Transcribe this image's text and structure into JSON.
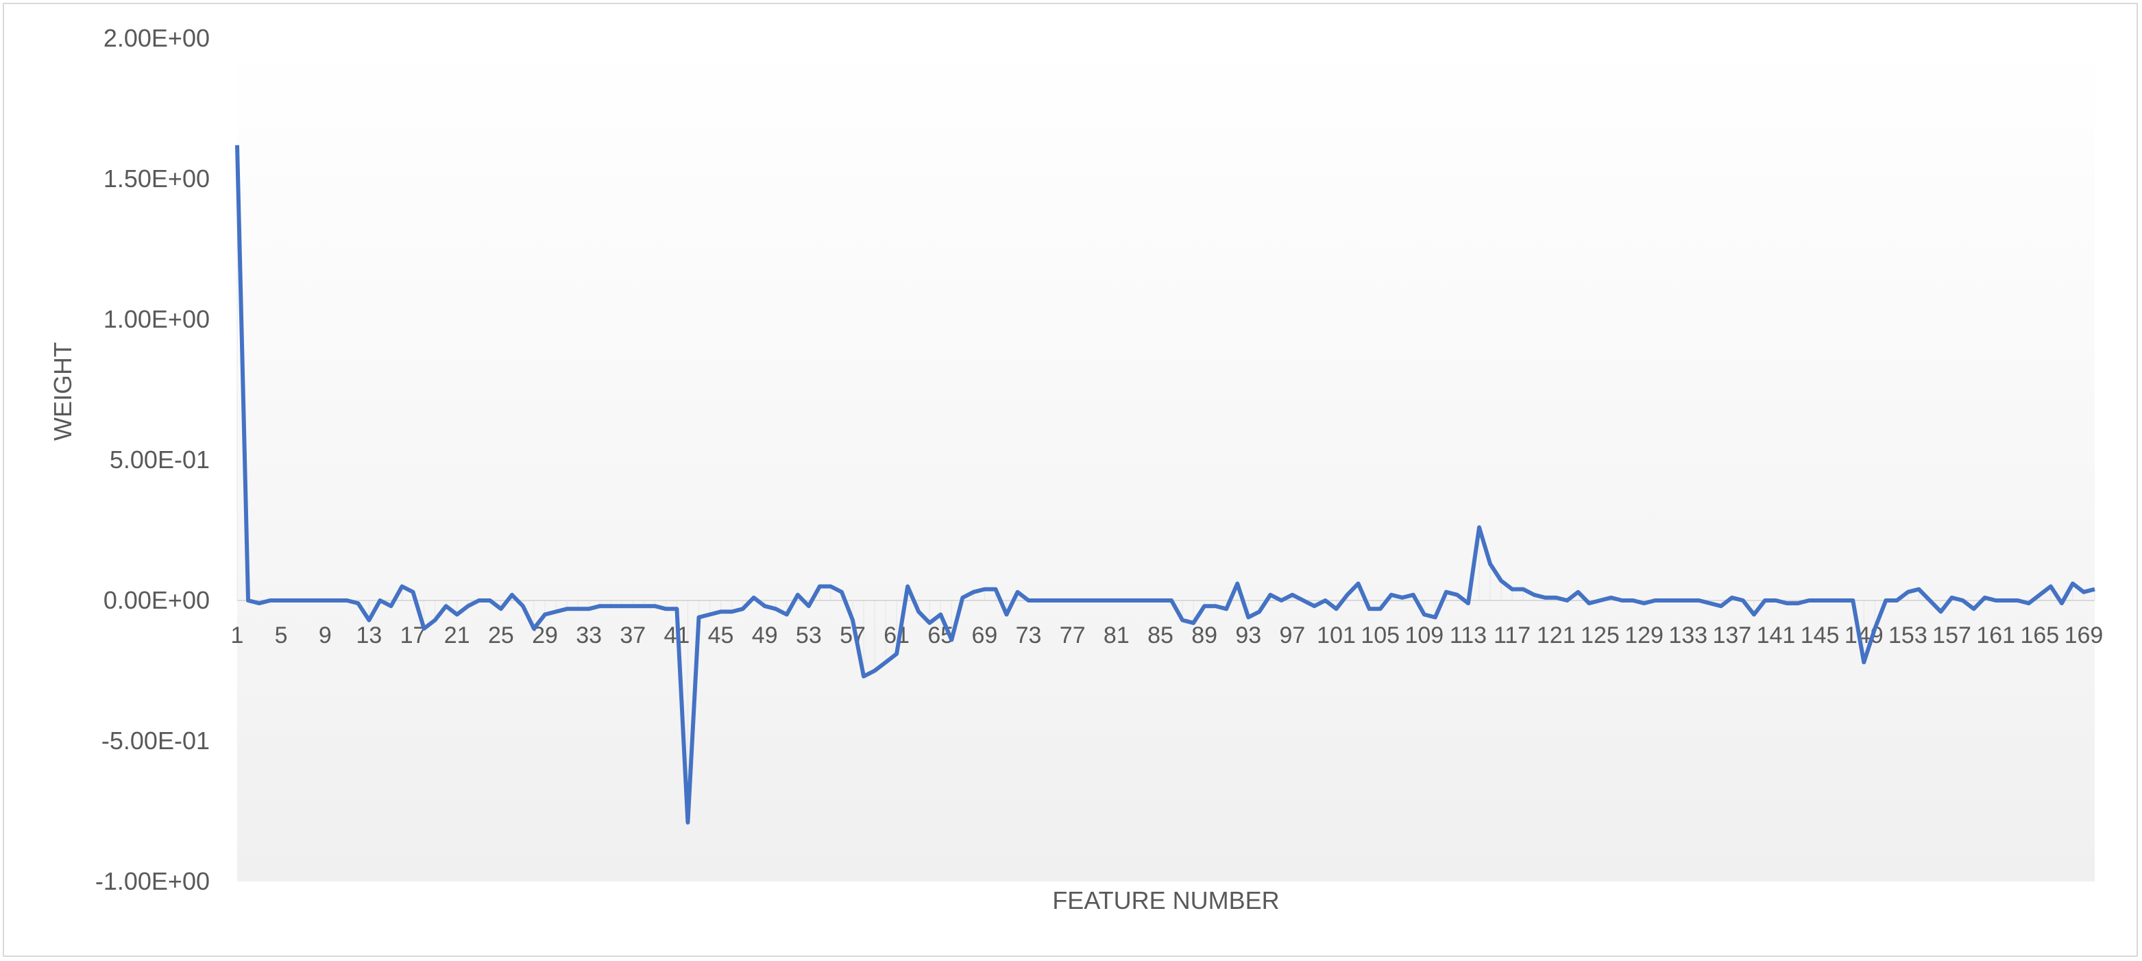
{
  "chart_data": {
    "type": "line",
    "title": "",
    "xlabel": "FEATURE NUMBER",
    "ylabel": "WEIGHT",
    "ylim": [
      -1.0,
      2.0
    ],
    "y_ticks": [
      2.0,
      1.5,
      1.0,
      0.5,
      0.0,
      -0.5,
      -1.0
    ],
    "y_tick_labels": [
      "2.00E+00",
      "1.50E+00",
      "1.00E+00",
      "5.00E-01",
      "0.00E+00",
      "-5.00E-01",
      "-1.00E+00"
    ],
    "x_tick_labels": [
      "1",
      "5",
      "9",
      "13",
      "17",
      "21",
      "25",
      "29",
      "33",
      "37",
      "41",
      "45",
      "49",
      "53",
      "57",
      "61",
      "65",
      "69",
      "73",
      "77",
      "81",
      "85",
      "89",
      "93",
      "97",
      "101",
      "105",
      "109",
      "113",
      "117",
      "121",
      "125",
      "129",
      "133",
      "137",
      "141",
      "145",
      "149",
      "153",
      "157",
      "161",
      "165",
      "169"
    ],
    "x_range": [
      1,
      170
    ],
    "grid": false,
    "legend": "none",
    "line_color": "#4472C4",
    "series": [
      {
        "name": "",
        "x_start": 1,
        "values": [
          1.62,
          0.0,
          -0.01,
          0.0,
          0.0,
          0.0,
          0.0,
          0.0,
          0.0,
          0.0,
          0.0,
          -0.01,
          -0.07,
          0.0,
          -0.02,
          0.05,
          0.03,
          -0.1,
          -0.07,
          -0.02,
          -0.05,
          -0.02,
          0.0,
          0.0,
          -0.03,
          0.02,
          -0.02,
          -0.1,
          -0.05,
          -0.04,
          -0.03,
          -0.03,
          -0.03,
          -0.02,
          -0.02,
          -0.02,
          -0.02,
          -0.02,
          -0.02,
          -0.03,
          -0.03,
          -0.79,
          -0.06,
          -0.05,
          -0.04,
          -0.04,
          -0.03,
          0.01,
          -0.02,
          -0.03,
          -0.05,
          0.02,
          -0.02,
          0.05,
          0.05,
          0.03,
          -0.07,
          -0.27,
          -0.25,
          -0.22,
          -0.19,
          0.05,
          -0.04,
          -0.08,
          -0.05,
          -0.14,
          0.01,
          0.03,
          0.04,
          0.04,
          -0.05,
          0.03,
          0.0,
          0.0,
          0.0,
          0.0,
          0.0,
          0.0,
          0.0,
          0.0,
          0.0,
          0.0,
          0.0,
          0.0,
          0.0,
          0.0,
          -0.07,
          -0.08,
          -0.02,
          -0.02,
          -0.03,
          0.06,
          -0.06,
          -0.04,
          0.02,
          0.0,
          0.02,
          0.0,
          -0.02,
          0.0,
          -0.03,
          0.02,
          0.06,
          -0.03,
          -0.03,
          0.02,
          0.01,
          0.02,
          -0.05,
          -0.06,
          0.03,
          0.02,
          -0.01,
          0.26,
          0.13,
          0.07,
          0.04,
          0.04,
          0.02,
          0.01,
          0.01,
          0.0,
          0.03,
          -0.01,
          0.0,
          0.01,
          0.0,
          0.0,
          -0.01,
          0.0,
          0.0,
          0.0,
          0.0,
          0.0,
          -0.01,
          -0.02,
          0.01,
          0.0,
          -0.05,
          0.0,
          0.0,
          -0.01,
          -0.01,
          0.0,
          0.0,
          0.0,
          0.0,
          0.0,
          -0.22,
          -0.1,
          0.0,
          0.0,
          0.03,
          0.04,
          0.0,
          -0.04,
          0.01,
          0.0,
          -0.03,
          0.01,
          0.0,
          0.0,
          0.0,
          -0.01,
          0.02,
          0.05,
          -0.01,
          0.06,
          0.03,
          0.04
        ]
      }
    ]
  }
}
